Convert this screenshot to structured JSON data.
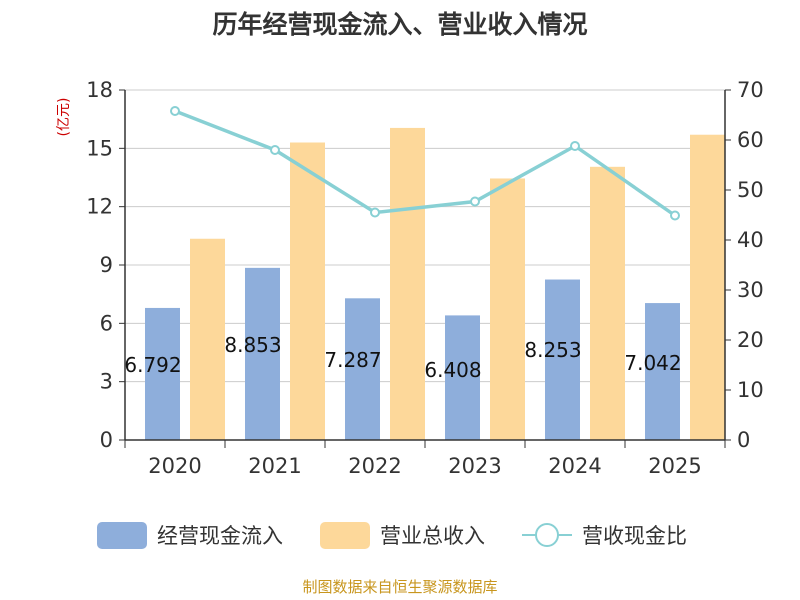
{
  "title": "历年经营现金流入、营业收入情况",
  "source": "制图数据来自恒生聚源数据库",
  "colors": {
    "cash_inflow": "#8eaedb",
    "revenue": "#fdd89a",
    "ratio": "#88d0d4",
    "axis": "#333333",
    "grid": "#cccccc",
    "unit_text": "#cc0000"
  },
  "chart_data": {
    "type": "bar",
    "title": "历年经营现金流入、营业收入情况",
    "categories": [
      "2020",
      "2021",
      "2022",
      "2023",
      "2024",
      "2025"
    ],
    "left_axis": {
      "unit": "(亿元)",
      "ticks": [
        0,
        3,
        6,
        9,
        12,
        15,
        18
      ],
      "ylim": [
        0,
        18
      ]
    },
    "right_axis": {
      "ticks": [
        0,
        10,
        20,
        30,
        40,
        50,
        60,
        70
      ],
      "ylim": [
        0,
        70
      ]
    },
    "series": [
      {
        "name": "经营现金流入",
        "kind": "bar",
        "axis": "left",
        "values": [
          6.792,
          8.853,
          7.287,
          6.408,
          8.253,
          7.042
        ],
        "labels": [
          "6.792",
          "8.853",
          "7.287",
          "6.408",
          "8.253",
          "7.042"
        ]
      },
      {
        "name": "营业总收入",
        "kind": "bar",
        "axis": "left",
        "values": [
          10.35,
          15.3,
          16.05,
          13.45,
          14.05,
          15.7
        ]
      },
      {
        "name": "营收现金比",
        "kind": "line",
        "axis": "right",
        "values": [
          65.8,
          58.0,
          45.5,
          47.7,
          58.8,
          44.9
        ]
      }
    ],
    "grid": true,
    "legend_position": "bottom"
  }
}
